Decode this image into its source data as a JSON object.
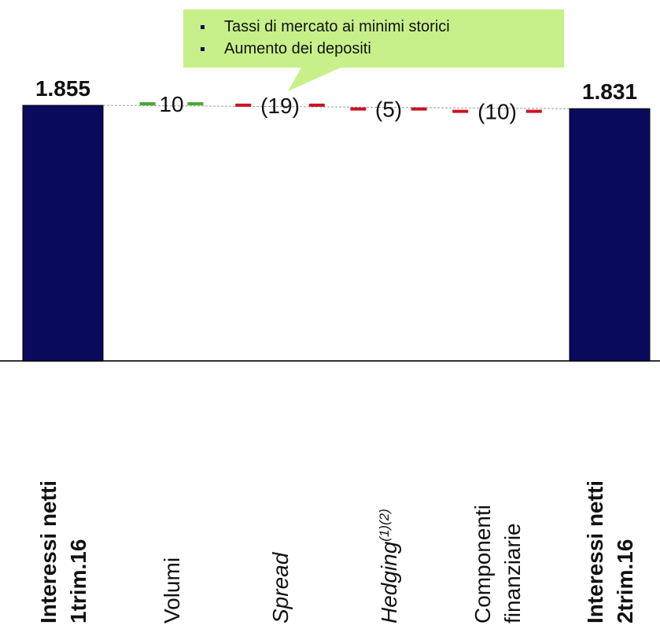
{
  "chart_data": {
    "type": "bar",
    "subtype": "waterfall",
    "categories": [
      {
        "lines": [
          {
            "parts": [
              {
                "text": "Interessi netti"
              }
            ]
          },
          {
            "parts": [
              {
                "text": "1trim.16"
              }
            ]
          }
        ],
        "bold": true
      },
      {
        "lines": [
          {
            "parts": [
              {
                "text": "Volumi"
              }
            ]
          }
        ]
      },
      {
        "lines": [
          {
            "parts": [
              {
                "text": "Spread",
                "italic": true
              }
            ]
          }
        ]
      },
      {
        "lines": [
          {
            "parts": [
              {
                "text": "Hedging",
                "italic": true
              },
              {
                "text": "(1)(2)",
                "italic": true,
                "sup": true
              }
            ]
          }
        ]
      },
      {
        "lines": [
          {
            "parts": [
              {
                "text": "Componenti"
              }
            ]
          },
          {
            "parts": [
              {
                "text": "finanziarie"
              }
            ]
          }
        ]
      },
      {
        "lines": [
          {
            "parts": [
              {
                "text": "Interessi netti"
              }
            ]
          },
          {
            "parts": [
              {
                "text": "2trim.16"
              }
            ]
          }
        ],
        "bold": true
      }
    ],
    "bars": [
      {
        "kind": "total",
        "value": 1855,
        "label": "1.855"
      },
      {
        "kind": "delta",
        "value": 10,
        "label": "10"
      },
      {
        "kind": "delta",
        "value": -19,
        "label": "(19)"
      },
      {
        "kind": "delta",
        "value": -5,
        "label": "(5)"
      },
      {
        "kind": "delta",
        "value": -10,
        "label": "(10)"
      },
      {
        "kind": "total",
        "value": 1831,
        "label": "1.831"
      }
    ],
    "callout": {
      "bullets": [
        "Tassi di mercato ai minimi storici",
        "Aumento dei depositi"
      ],
      "points_to_category": 2
    },
    "colors": {
      "total": "#0a0a5c",
      "increase": "#4aa832",
      "decrease": "#cc1122",
      "callout_fill": "#c8f08a",
      "connector": "#999999"
    },
    "ylim": [
      0,
      1900
    ],
    "grid": false
  }
}
